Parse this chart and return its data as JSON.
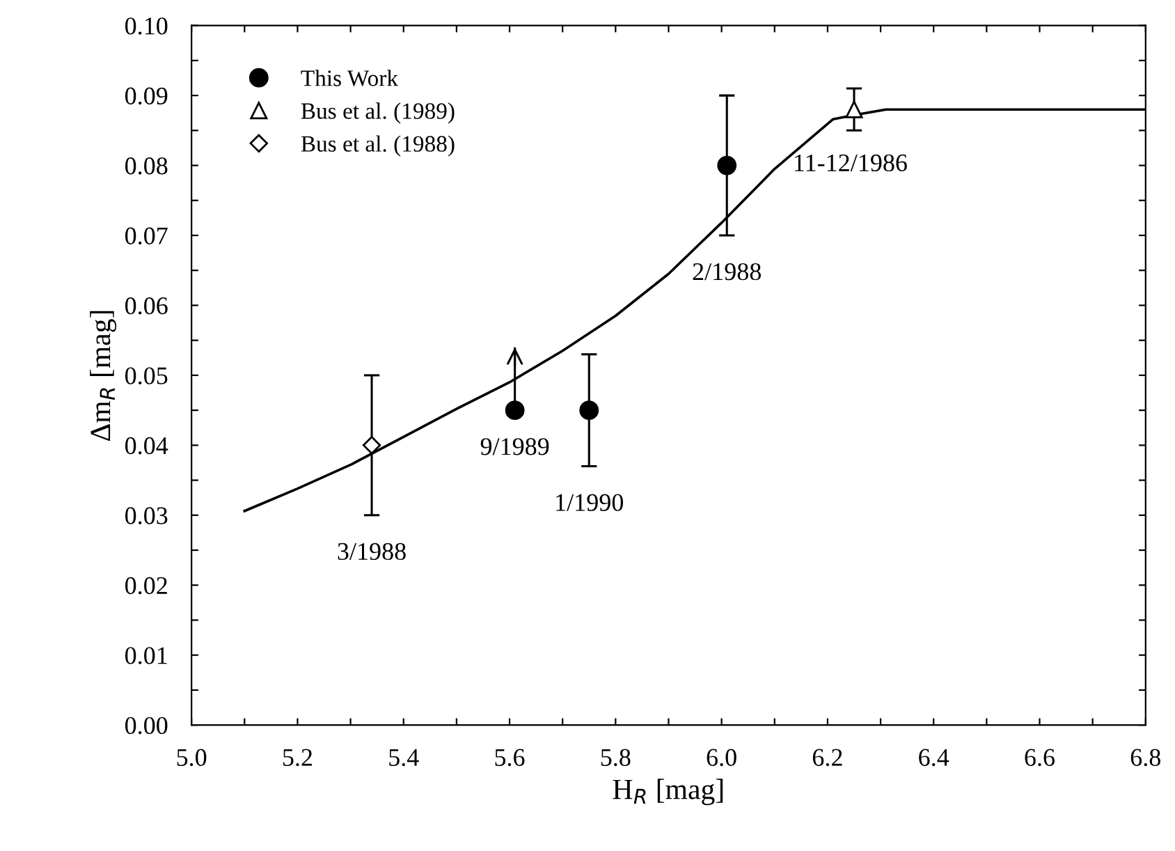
{
  "chart_data": {
    "type": "scatter",
    "xlabel": "H$_{R}$ [mag]",
    "ylabel": "Δm$_{R}$ [mag]",
    "series": [
      {
        "name": "This Work",
        "marker": "circle",
        "color": "#000000",
        "x": [
          5.61,
          5.75,
          6.01
        ],
        "values": [
          0.045,
          0.045,
          0.08
        ],
        "errors": [
          [
            0.045,
            0.054
          ],
          [
            0.037,
            0.053
          ],
          [
            0.07,
            0.09
          ]
        ]
      },
      {
        "name": "Bus et al. (1989)",
        "marker": "triangle",
        "color": "#000000",
        "x": [
          6.25
        ],
        "values": [
          0.088
        ],
        "errors": [
          [
            0.085,
            0.091
          ]
        ]
      },
      {
        "name": "Bus et al. (1988)",
        "marker": "diamond",
        "color": "#000000",
        "x": [
          5.34
        ],
        "values": [
          0.04
        ],
        "errors": [
          [
            0.03,
            0.05
          ]
        ]
      },
      {
        "type": "line",
        "color": "#000000",
        "x": [
          5.1,
          5.2,
          5.3,
          5.4,
          5.5,
          5.6,
          5.7,
          5.8,
          5.9,
          6.0,
          6.1,
          6.21,
          6.25,
          6.31,
          6.8
        ],
        "values": [
          0.0306,
          0.0338,
          0.0372,
          0.0412,
          0.0452,
          0.049,
          0.0535,
          0.0585,
          0.0645,
          0.0718,
          0.0795,
          0.0866,
          0.0872,
          0.088,
          0.088
        ]
      }
    ],
    "annotations": [
      {
        "text": "3/1988",
        "x": 5.34,
        "y": 0.03
      },
      {
        "text": "9/1989",
        "x": 5.61,
        "y": 0.045
      },
      {
        "text": "1/1990",
        "x": 5.75,
        "y": 0.037
      },
      {
        "text": "2/1988",
        "x": 6.01,
        "y": 0.07
      },
      {
        "text": "11-12/1986",
        "x": 6.25,
        "y": 0.085
      }
    ],
    "xlim": [
      5.0,
      6.8
    ],
    "xticks": [
      {
        "value": 5.0,
        "label": "5.0"
      },
      {
        "value": 5.1,
        "label": null
      },
      {
        "value": 5.2,
        "label": "5.2"
      },
      {
        "value": 5.3,
        "label": null
      },
      {
        "value": 5.4,
        "label": "5.4"
      },
      {
        "value": 5.5,
        "label": null
      },
      {
        "value": 5.6,
        "label": "5.6"
      },
      {
        "value": 5.7,
        "label": null
      },
      {
        "value": 5.8,
        "label": "5.8"
      },
      {
        "value": 5.9,
        "label": null
      },
      {
        "value": 6.0,
        "label": "6.0"
      },
      {
        "value": 6.1,
        "label": null
      },
      {
        "value": 6.2,
        "label": "6.2"
      },
      {
        "value": 6.3,
        "label": null
      },
      {
        "value": 6.4,
        "label": "6.4"
      },
      {
        "value": 6.5,
        "label": null
      },
      {
        "value": 6.6,
        "label": "6.6"
      },
      {
        "value": 6.7,
        "label": null
      },
      {
        "value": 6.8,
        "label": "6.8"
      }
    ],
    "ylim": [
      0.0,
      0.1
    ],
    "yticks": [
      {
        "value": 0.0,
        "label": "0.00"
      },
      {
        "value": 0.005,
        "label": null
      },
      {
        "value": 0.01,
        "label": "0.01"
      },
      {
        "value": 0.015,
        "label": null
      },
      {
        "value": 0.02,
        "label": "0.02"
      },
      {
        "value": 0.025,
        "label": null
      },
      {
        "value": 0.03,
        "label": "0.03"
      },
      {
        "value": 0.035,
        "label": null
      },
      {
        "value": 0.04,
        "label": "0.04"
      },
      {
        "value": 0.045,
        "label": null
      },
      {
        "value": 0.05,
        "label": "0.05"
      },
      {
        "value": 0.055,
        "label": null
      },
      {
        "value": 0.06,
        "label": "0.06"
      },
      {
        "value": 0.065,
        "label": null
      },
      {
        "value": 0.07,
        "label": "0.07"
      },
      {
        "value": 0.075,
        "label": null
      },
      {
        "value": 0.08,
        "label": "0.08"
      },
      {
        "value": 0.085,
        "label": null
      },
      {
        "value": 0.09,
        "label": "0.09"
      },
      {
        "value": 0.095,
        "label": null
      },
      {
        "value": 0.1,
        "label": "0.10"
      }
    ],
    "grid": false,
    "legend": "top left"
  }
}
